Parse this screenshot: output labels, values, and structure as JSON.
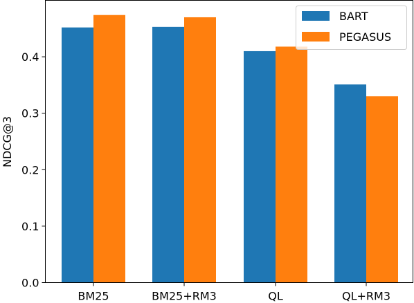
{
  "chart_data": {
    "type": "bar",
    "categories": [
      "BM25",
      "BM25+RM3",
      "QL",
      "QL+RM3"
    ],
    "series": [
      {
        "name": "BART",
        "values": [
          0.452,
          0.453,
          0.41,
          0.351
        ],
        "color": "#1f77b4"
      },
      {
        "name": "PEGASUS",
        "values": [
          0.474,
          0.47,
          0.418,
          0.33
        ],
        "color": "#ff7f0e"
      }
    ],
    "title": "",
    "xlabel": "",
    "ylabel": "NDCG@3",
    "ylim": [
      0,
      0.5
    ],
    "yticks": [
      0.0,
      0.1,
      0.2,
      0.3,
      0.4
    ],
    "ytick_labels": [
      "0.0",
      "0.1",
      "0.2",
      "0.3",
      "0.4"
    ],
    "grid": false,
    "legend_position": "top-right"
  }
}
